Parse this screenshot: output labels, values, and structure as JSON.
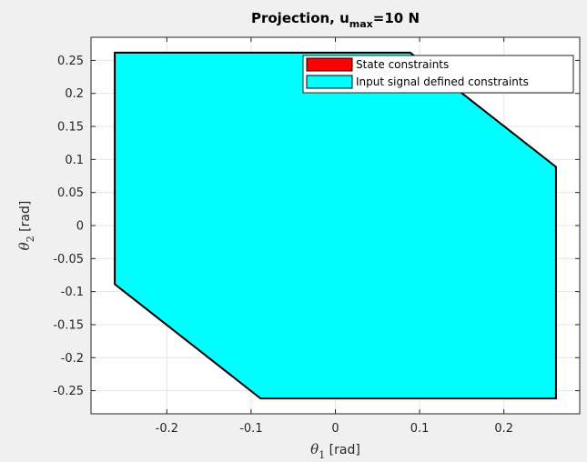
{
  "chart_data": {
    "type": "area",
    "title": "Projection, u",
    "title_subscript": "max",
    "title_suffix": "=10 N",
    "xlabel": {
      "symbol": "θ",
      "subscript": "1",
      "unit": " [rad]"
    },
    "ylabel": {
      "symbol": "θ",
      "subscript": "2",
      "unit": " [rad]"
    },
    "xlim": [
      -0.29,
      0.29
    ],
    "ylim": [
      -0.285,
      0.285
    ],
    "xticks": [
      -0.2,
      -0.1,
      0,
      0.1,
      0.2
    ],
    "yticks": [
      -0.25,
      -0.2,
      -0.15,
      -0.1,
      -0.05,
      0,
      0.05,
      0.1,
      0.15,
      0.2,
      0.25
    ],
    "xtick_labels": [
      "-0.2",
      "-0.1",
      "0",
      "0.1",
      "0.2"
    ],
    "ytick_labels": [
      "-0.25",
      "-0.2",
      "-0.15",
      "-0.1",
      "-0.05",
      "0",
      "0.05",
      "0.1",
      "0.15",
      "0.2",
      "0.25"
    ],
    "grid": true,
    "legend_position": "top-right",
    "series": [
      {
        "name": "State constraints",
        "color": "#ff0000",
        "points": []
      },
      {
        "name": "Input signal defined constraints",
        "color": "#00ffff",
        "points": [
          [
            -0.2618,
            0.2618
          ],
          [
            0.0888,
            0.2618
          ],
          [
            0.2618,
            0.0888
          ],
          [
            0.2618,
            -0.2618
          ],
          [
            -0.0888,
            -0.2618
          ],
          [
            -0.2618,
            -0.0888
          ]
        ]
      }
    ]
  }
}
